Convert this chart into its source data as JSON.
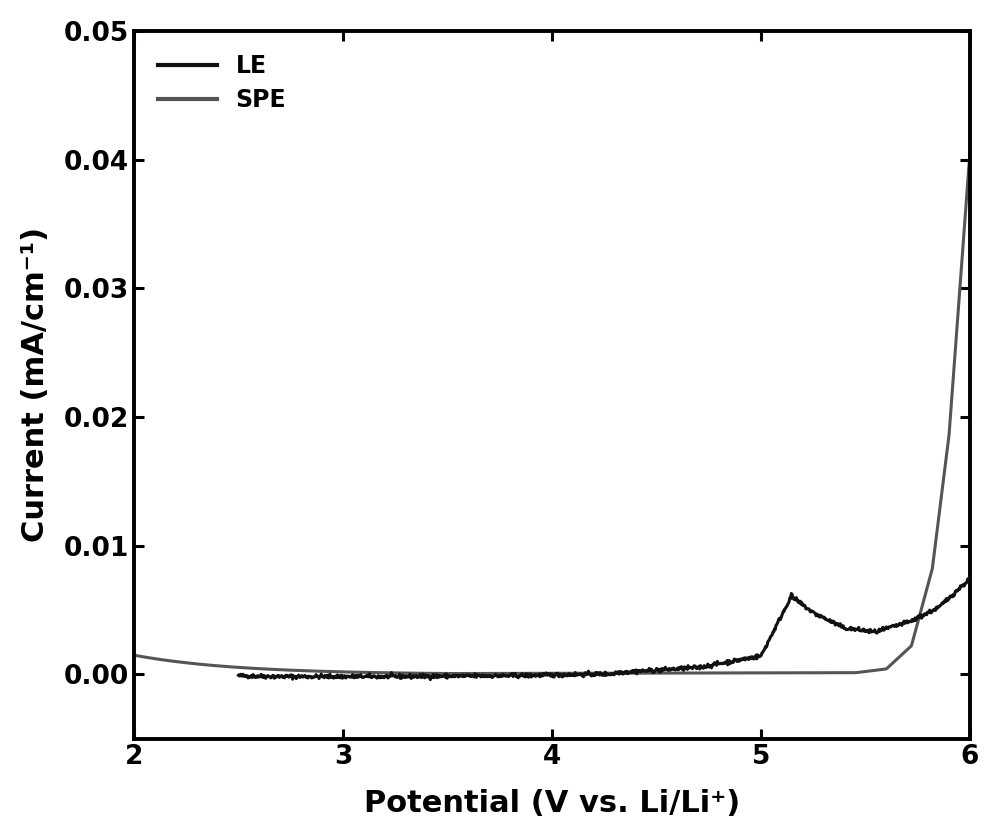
{
  "xlabel": "Potential (V vs. Li/Li⁺)",
  "ylabel": "Current (mA/cm⁻¹)",
  "xlim": [
    2,
    6
  ],
  "ylim": [
    -0.005,
    0.05
  ],
  "yticks": [
    0.0,
    0.01,
    0.02,
    0.03,
    0.04,
    0.05
  ],
  "ytick_labels": [
    "0.00",
    "0.01",
    "0.02",
    "0.03",
    "0.04",
    "0.05"
  ],
  "xticks": [
    2,
    3,
    4,
    5,
    6
  ],
  "legend_labels": [
    "LE",
    "SPE"
  ],
  "LE_color": "#111111",
  "SPE_color": "#555555",
  "linewidth_LE": 2.2,
  "linewidth_SPE": 2.2,
  "background_color": "#ffffff",
  "legend_fontsize": 17,
  "axis_label_fontsize": 22,
  "tick_fontsize": 19
}
